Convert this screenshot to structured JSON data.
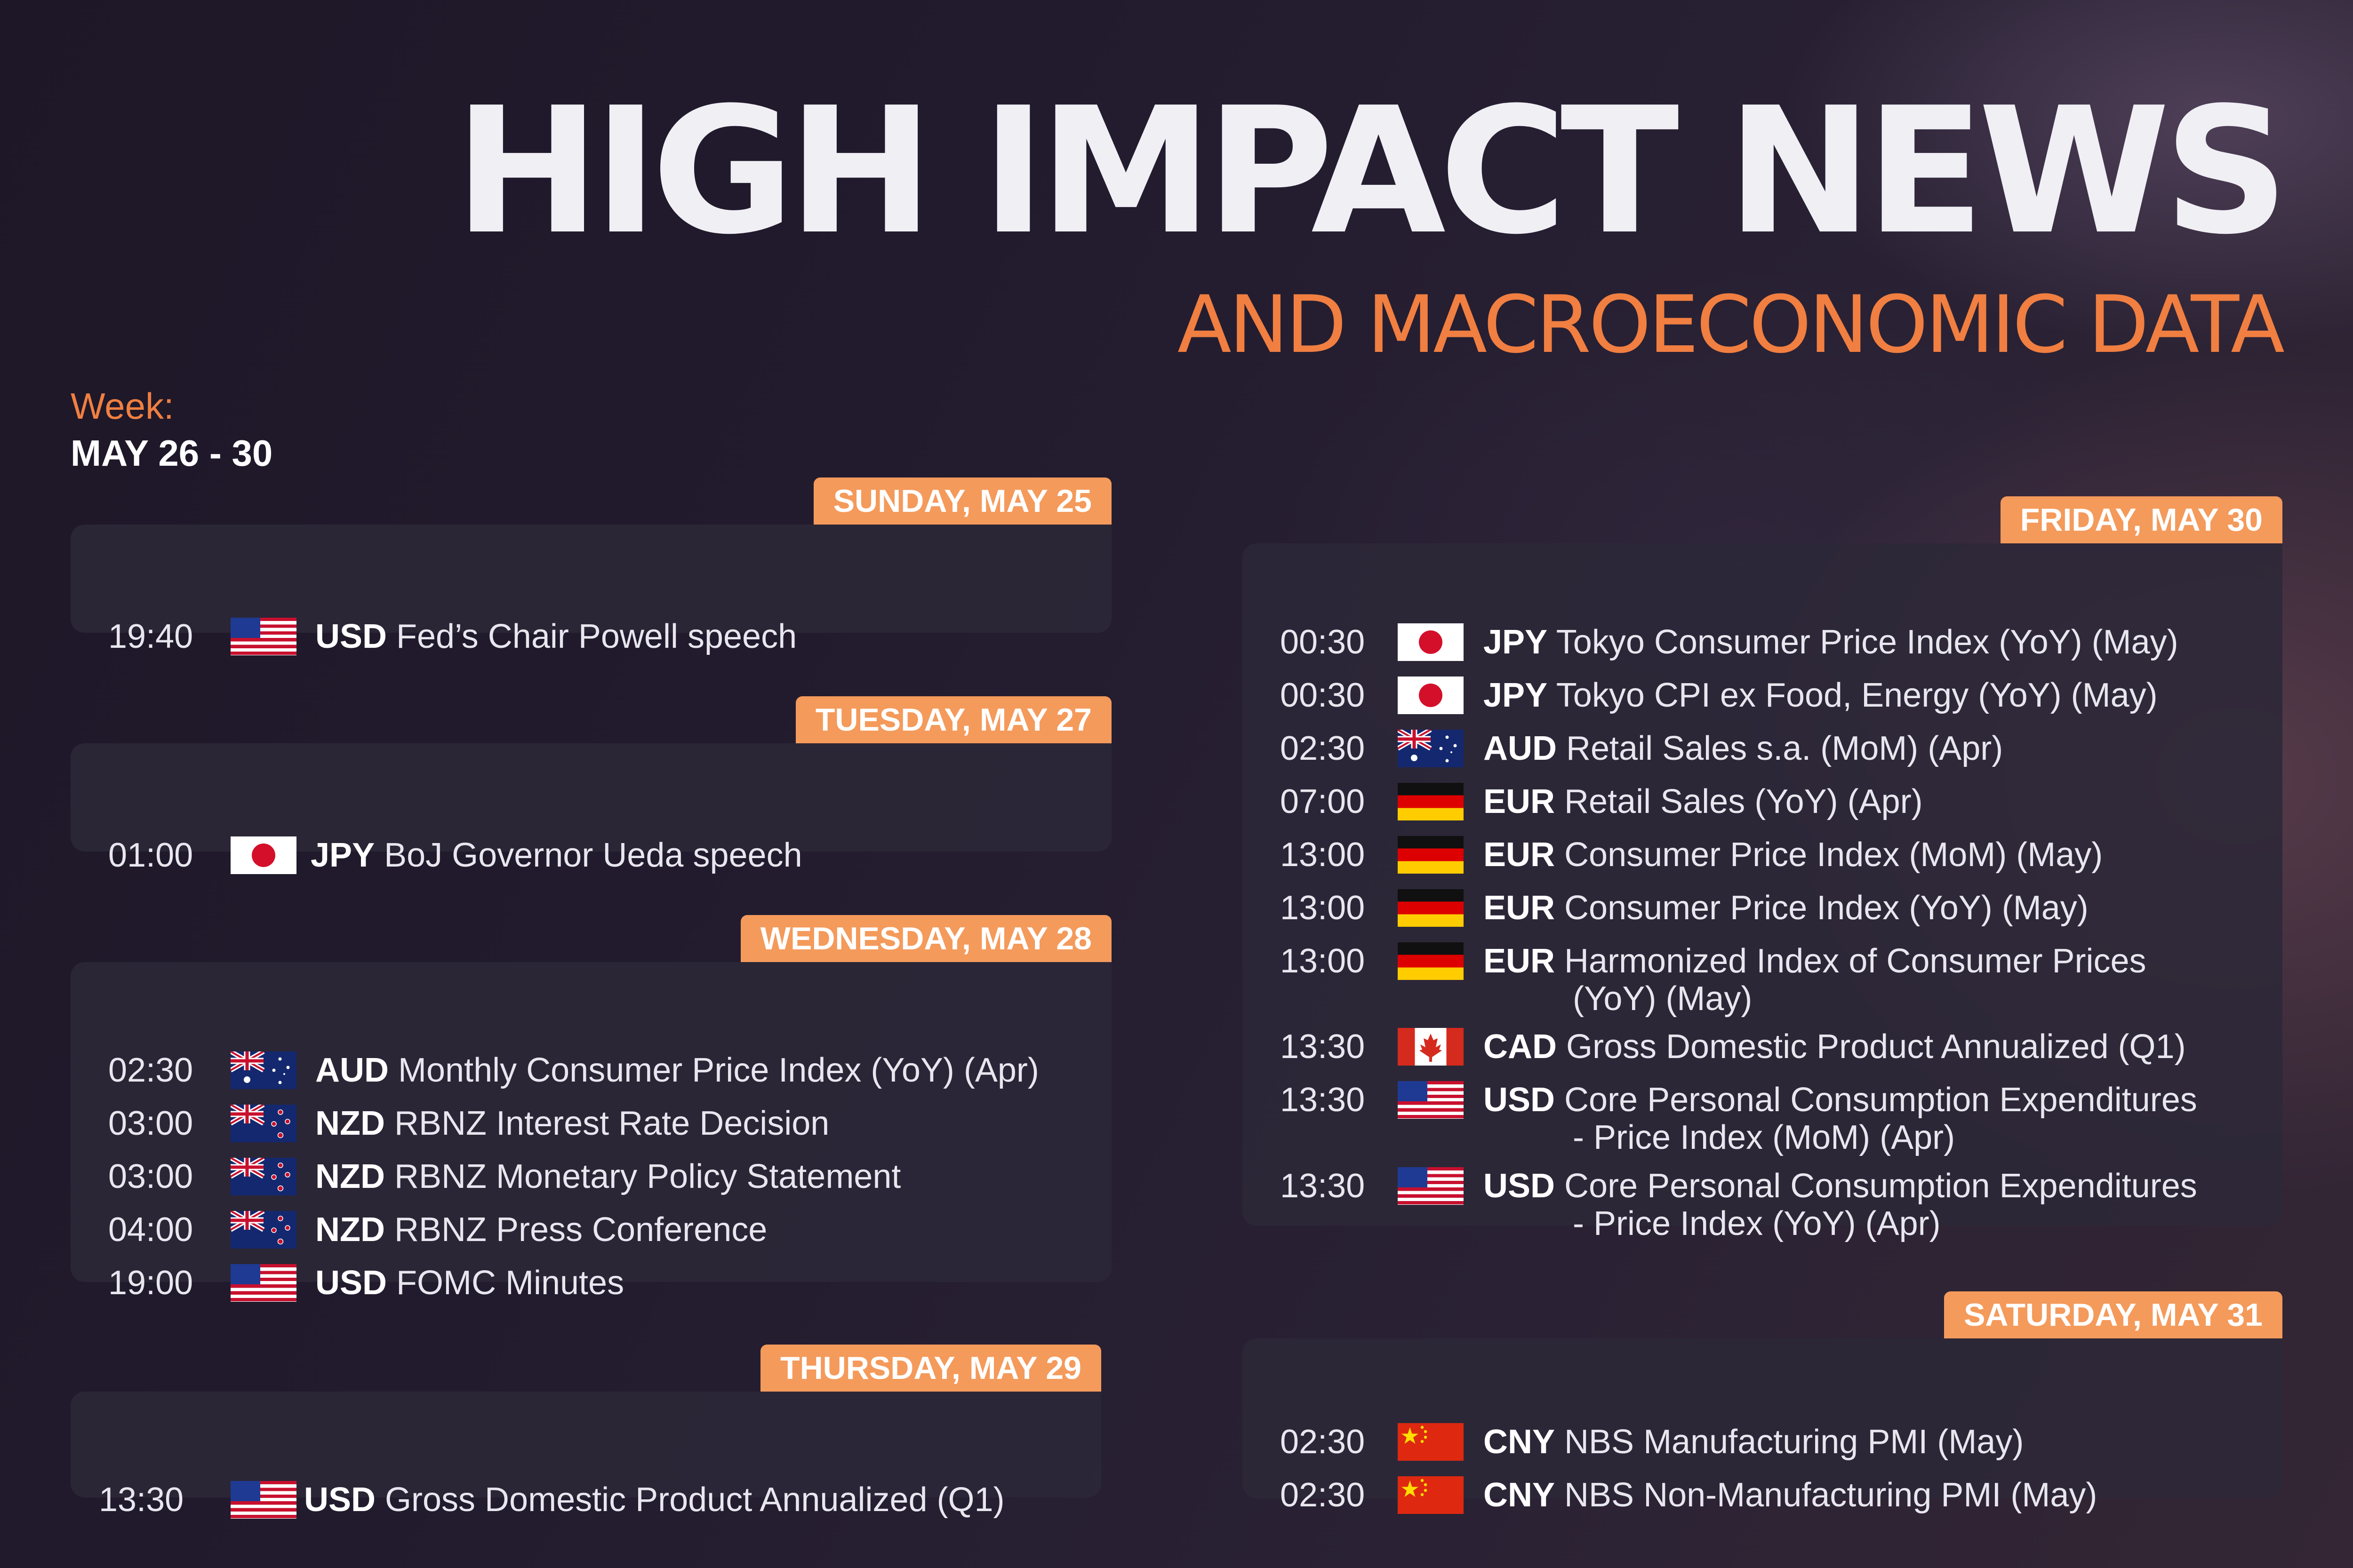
{
  "title": "HIGH IMPACT NEWS",
  "subtitle": "AND MACROECONOMIC DATA",
  "week": {
    "label": "Week:",
    "range": "MAY 26 - 30"
  },
  "colors": {
    "accent": "#f07f41",
    "badge": "#f49a5b",
    "panel": "#2c2838"
  },
  "days": [
    {
      "label": "SUNDAY, MAY 25",
      "events": [
        {
          "time": "19:40",
          "flag": "usa-flag-icon",
          "currency": "USD",
          "title": "Fed’s Chair Powell speech"
        }
      ]
    },
    {
      "label": "TUESDAY, MAY 27",
      "events": [
        {
          "time": "01:00",
          "flag": "japan-flag-icon",
          "currency": "JPY",
          "title": "BoJ Governor Ueda speech"
        }
      ]
    },
    {
      "label": "WEDNESDAY, MAY 28",
      "events": [
        {
          "time": "02:30",
          "flag": "australia-flag-icon",
          "currency": "AUD",
          "title": "Monthly Consumer Price Index (YoY) (Apr)"
        },
        {
          "time": "03:00",
          "flag": "new-zealand-flag-icon",
          "currency": "NZD",
          "title": "RBNZ Interest Rate Decision"
        },
        {
          "time": "03:00",
          "flag": "new-zealand-flag-icon",
          "currency": "NZD",
          "title": "RBNZ Monetary Policy Statement"
        },
        {
          "time": "04:00",
          "flag": "new-zealand-flag-icon",
          "currency": "NZD",
          "title": "RBNZ Press Conference"
        },
        {
          "time": "19:00",
          "flag": "usa-flag-icon",
          "currency": "USD",
          "title": "FOMC Minutes"
        }
      ]
    },
    {
      "label": "THURSDAY, MAY 29",
      "events": [
        {
          "time": "13:30",
          "flag": "usa-flag-icon",
          "currency": "USD",
          "title": "Gross Domestic Product Annualized (Q1)"
        }
      ]
    },
    {
      "label": "FRIDAY, MAY 30",
      "events": [
        {
          "time": "00:30",
          "flag": "japan-flag-icon",
          "currency": "JPY",
          "title": "Tokyo Consumer Price Index (YoY) (May)"
        },
        {
          "time": "00:30",
          "flag": "japan-flag-icon",
          "currency": "JPY",
          "title": "Tokyo CPI ex Food, Energy (YoY) (May)"
        },
        {
          "time": "02:30",
          "flag": "australia-flag-icon",
          "currency": "AUD",
          "title": "Retail Sales s.a. (MoM) (Apr)"
        },
        {
          "time": "07:00",
          "flag": "germany-flag-icon",
          "currency": "EUR",
          "title": "Retail Sales (YoY) (Apr)"
        },
        {
          "time": "13:00",
          "flag": "germany-flag-icon",
          "currency": "EUR",
          "title": "Consumer Price Index (MoM) (May)"
        },
        {
          "time": "13:00",
          "flag": "germany-flag-icon",
          "currency": "EUR",
          "title": "Consumer Price Index (YoY) (May)"
        },
        {
          "time": "13:00",
          "flag": "germany-flag-icon",
          "currency": "EUR",
          "title": "Harmonized Index of Consumer Prices",
          "title2": "(YoY) (May)"
        },
        {
          "time": "13:30",
          "flag": "canada-flag-icon",
          "currency": "CAD",
          "title": "Gross Domestic Product Annualized (Q1)"
        },
        {
          "time": "13:30",
          "flag": "usa-flag-icon",
          "currency": "USD",
          "title": "Core Personal Consumption Expenditures",
          "title2": "- Price Index (MoM) (Apr)"
        },
        {
          "time": "13:30",
          "flag": "usa-flag-icon",
          "currency": "USD",
          "title": "Core Personal Consumption Expenditures",
          "title2": "- Price Index (YoY) (Apr)"
        }
      ]
    },
    {
      "label": "SATURDAY, MAY 31",
      "events": [
        {
          "time": "02:30",
          "flag": "china-flag-icon",
          "currency": "CNY",
          "title": "NBS Manufacturing PMI (May)"
        },
        {
          "time": "02:30",
          "flag": "china-flag-icon",
          "currency": "CNY",
          "title": "NBS Non-Manufacturing PMI (May)"
        }
      ]
    }
  ]
}
